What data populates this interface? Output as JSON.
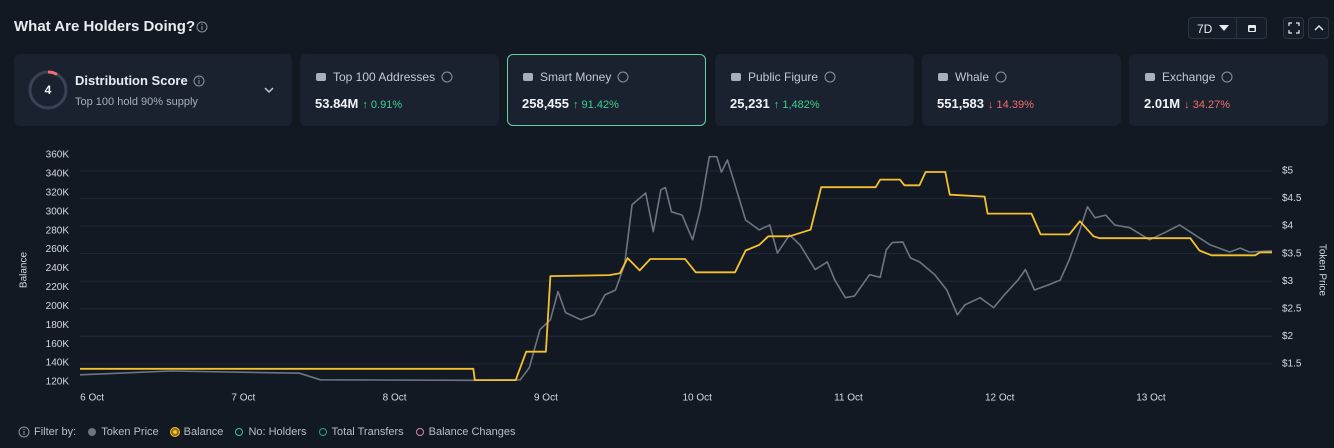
{
  "header": {
    "title": "What Are Holders Doing?",
    "range": "7D"
  },
  "distribution": {
    "score": 4,
    "title": "Distribution Score",
    "subtitle": "Top 100 hold 90% supply"
  },
  "cards": [
    {
      "title": "Top 100 Addresses",
      "value": "53.84M",
      "change": "↑ 0.91%",
      "change_color": "#3ecf8e",
      "selected": false
    },
    {
      "title": "Smart Money",
      "value": "258,455",
      "change": "↑ 91.42%",
      "change_color": "#3ecf8e",
      "selected": true
    },
    {
      "title": "Public Figure",
      "value": "25,231",
      "change": "↑ 1,482%",
      "change_color": "#3ecf8e",
      "selected": false
    },
    {
      "title": "Whale",
      "value": "551,583",
      "change": "↓ 14.39%",
      "change_color": "#f26d6d",
      "selected": false
    },
    {
      "title": "Exchange",
      "value": "2.01M",
      "change": "↓ 34.27%",
      "change_color": "#f26d6d",
      "selected": false
    }
  ],
  "chart_data": {
    "type": "line",
    "y_label": "Balance",
    "y2_label": "Token Price",
    "xlim": [
      -0.08,
      7.8
    ],
    "xticks": [
      {
        "value": 0,
        "label": "6 Oct"
      },
      {
        "value": 1,
        "label": "7 Oct"
      },
      {
        "value": 2,
        "label": "8 Oct"
      },
      {
        "value": 3,
        "label": "9 Oct"
      },
      {
        "value": 4,
        "label": "10 Oct"
      },
      {
        "value": 5,
        "label": "11 Oct"
      },
      {
        "value": 6,
        "label": "12 Oct"
      },
      {
        "value": 7,
        "label": "13 Oct"
      }
    ],
    "ylim": [
      120000,
      360000
    ],
    "yticks": [
      {
        "value": 120000,
        "label": "120K"
      },
      {
        "value": 140000,
        "label": "140K"
      },
      {
        "value": 160000,
        "label": "160K"
      },
      {
        "value": 180000,
        "label": "180K"
      },
      {
        "value": 200000,
        "label": "200K"
      },
      {
        "value": 220000,
        "label": "220K"
      },
      {
        "value": 240000,
        "label": "240K"
      },
      {
        "value": 260000,
        "label": "260K"
      },
      {
        "value": 280000,
        "label": "280K"
      },
      {
        "value": 300000,
        "label": "300K"
      },
      {
        "value": 320000,
        "label": "320K"
      },
      {
        "value": 340000,
        "label": "340K"
      },
      {
        "value": 360000,
        "label": "360K"
      }
    ],
    "y2lim": [
      1.17,
      5.29
    ],
    "y2ticks": [
      {
        "value": 1.5,
        "label": "$1.5"
      },
      {
        "value": 2,
        "label": "$2"
      },
      {
        "value": 2.5,
        "label": "$2.5"
      },
      {
        "value": 3,
        "label": "$3"
      },
      {
        "value": 3.5,
        "label": "$3.5"
      },
      {
        "value": 4,
        "label": "$4"
      },
      {
        "value": 4.5,
        "label": "$4.5"
      },
      {
        "value": 5,
        "label": "$5"
      }
    ],
    "grid": true,
    "series": [
      {
        "name": "Token Price",
        "color": "#6b7583",
        "axis": "y2",
        "x": [
          -0.08,
          0.52,
          1.37,
          1.51,
          2.5,
          2.83,
          2.89,
          2.96,
          3.03,
          3.08,
          3.13,
          3.23,
          3.32,
          3.39,
          3.46,
          3.52,
          3.57,
          3.66,
          3.71,
          3.76,
          3.79,
          3.83,
          3.9,
          3.97,
          4.02,
          4.08,
          4.13,
          4.16,
          4.2,
          4.25,
          4.32,
          4.41,
          4.48,
          4.53,
          4.61,
          4.68,
          4.78,
          4.86,
          4.91,
          4.98,
          5.04,
          5.14,
          5.21,
          5.25,
          5.29,
          5.36,
          5.41,
          5.47,
          5.57,
          5.65,
          5.72,
          5.77,
          5.87,
          5.96,
          6.03,
          6.12,
          6.17,
          6.23,
          6.32,
          6.4,
          6.46,
          6.53,
          6.58,
          6.63,
          6.7,
          6.76,
          6.86,
          6.99,
          7.09,
          7.19,
          7.29,
          7.39,
          7.52,
          7.59,
          7.65,
          7.8
        ],
        "values": [
          1.3,
          1.37,
          1.33,
          1.21,
          1.2,
          1.21,
          1.43,
          2.12,
          2.3,
          2.81,
          2.43,
          2.3,
          2.39,
          2.75,
          2.84,
          3.3,
          4.39,
          4.6,
          3.9,
          4.66,
          4.7,
          4.26,
          4.2,
          3.75,
          4.3,
          5.26,
          5.26,
          4.98,
          5.2,
          4.75,
          4.11,
          3.93,
          4.02,
          3.51,
          3.84,
          3.66,
          3.21,
          3.35,
          3.02,
          2.7,
          2.73,
          3.12,
          3.07,
          3.57,
          3.7,
          3.71,
          3.42,
          3.35,
          3.12,
          2.84,
          2.39,
          2.57,
          2.7,
          2.52,
          2.75,
          3.02,
          3.21,
          2.84,
          2.93,
          3.02,
          3.39,
          3.93,
          4.35,
          4.15,
          4.2,
          4.02,
          3.97,
          3.75,
          3.88,
          4.02,
          3.84,
          3.66,
          3.53,
          3.6,
          3.53,
          3.55
        ]
      },
      {
        "name": "Balance",
        "color": "#f5c12e",
        "axis": "y",
        "x": [
          -0.08,
          2.52,
          2.53,
          2.8,
          2.87,
          3.0,
          3.03,
          3.42,
          3.49,
          3.54,
          3.62,
          3.69,
          3.92,
          3.99,
          4.25,
          4.32,
          4.41,
          4.47,
          4.61,
          4.75,
          4.82,
          5.18,
          5.21,
          5.34,
          5.37,
          5.47,
          5.51,
          5.64,
          5.67,
          5.9,
          5.92,
          6.21,
          6.27,
          6.46,
          6.53,
          6.62,
          6.66,
          7.26,
          7.32,
          7.4,
          7.69,
          7.72,
          7.8
        ],
        "values": [
          134000,
          134000,
          122000,
          122000,
          152000,
          152000,
          232000,
          233000,
          235000,
          251000,
          238000,
          250000,
          250000,
          236000,
          236000,
          259000,
          265000,
          274000,
          274000,
          281000,
          326000,
          326000,
          334000,
          334000,
          328000,
          328000,
          342000,
          342000,
          318000,
          316000,
          298000,
          298000,
          276000,
          276000,
          290000,
          274000,
          272000,
          272000,
          259000,
          254000,
          254000,
          257000,
          257000
        ]
      }
    ]
  },
  "legend": {
    "filter_label": "Filter by:",
    "filters": [
      {
        "name": "No: Holders",
        "color": "#2fc7b0"
      },
      {
        "name": "Total Transfers",
        "color": "#1fa88f"
      },
      {
        "name": "Balance Changes",
        "color": "#e27bb5"
      }
    ]
  }
}
